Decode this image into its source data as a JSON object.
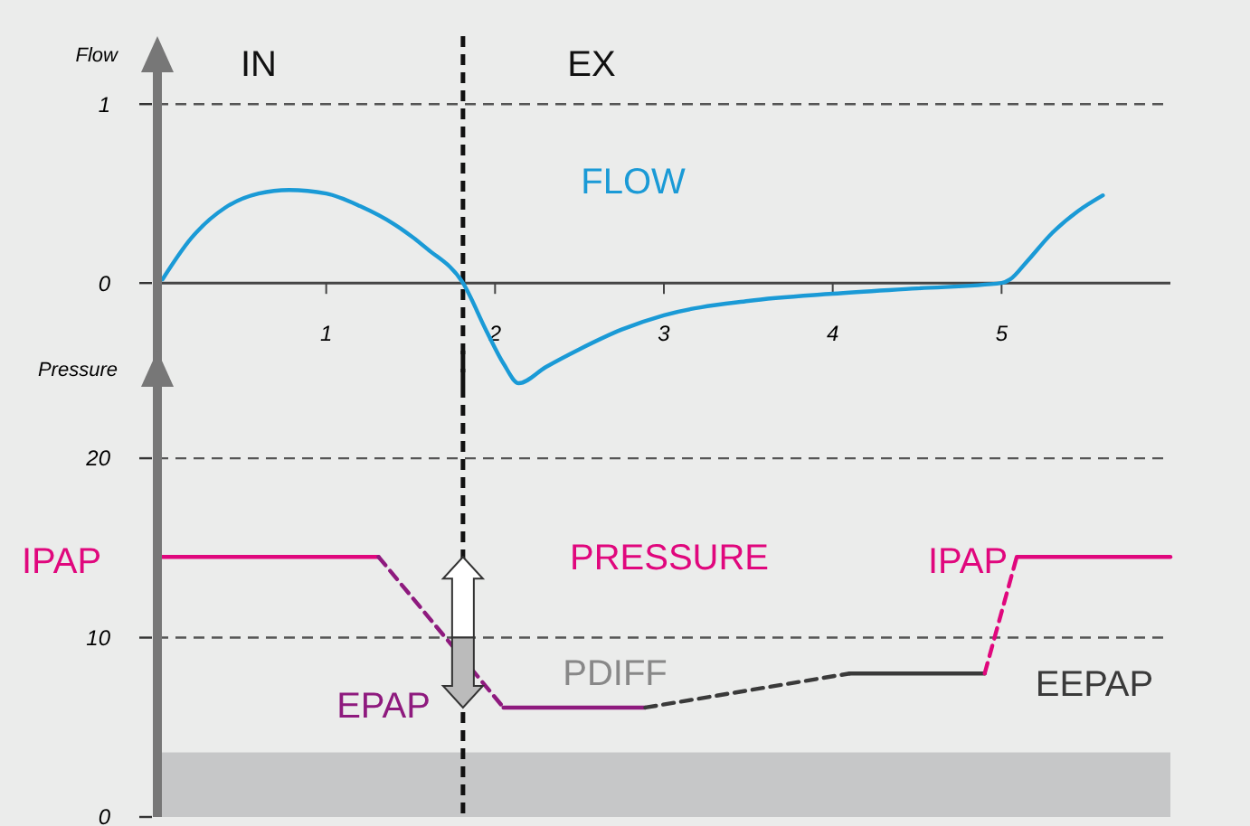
{
  "chart_data": [
    {
      "type": "line",
      "ylabel": "Flow",
      "xlim": [
        0,
        6.0
      ],
      "ylim": [
        -0.58,
        1.38
      ],
      "xticks": [
        1,
        2,
        3,
        4,
        5
      ],
      "yticks": [
        0,
        1
      ],
      "grid": "y",
      "series": [
        {
          "color": "#1a9ad6",
          "x": [
            0.03,
            0.2,
            0.4,
            0.6,
            0.78,
            1.0,
            1.2,
            1.4,
            1.6,
            1.81,
            1.95,
            2.05,
            2.14,
            2.3,
            2.5,
            2.75,
            3.0,
            3.5,
            4.0,
            4.5,
            5.0,
            5.05,
            5.15,
            5.3,
            5.45,
            5.6
          ],
          "values": [
            0.02,
            0.25,
            0.42,
            0.5,
            0.52,
            0.5,
            0.43,
            0.33,
            0.19,
            0,
            -0.27,
            -0.45,
            -0.56,
            -0.47,
            -0.37,
            -0.26,
            -0.18,
            -0.1,
            -0.06,
            -0.03,
            0,
            0.02,
            0.12,
            0.28,
            0.4,
            0.49
          ]
        }
      ],
      "ref_lines": [
        {
          "axis": "x",
          "value": 1.81,
          "color": "#111111",
          "line_style": "dashed"
        }
      ],
      "annotations": [
        "IN",
        "EX",
        "FLOW"
      ]
    },
    {
      "type": "line",
      "ylabel": "Pressure",
      "xlim": [
        0,
        6.0
      ],
      "ylim": [
        0,
        26
      ],
      "yticks": [
        0,
        10,
        20
      ],
      "grid": "y",
      "tick_labels": "y",
      "series": [
        {
          "color": "#e0077d",
          "line_style": "solid",
          "x": [
            0,
            1.31
          ],
          "values": [
            14.5,
            14.5
          ]
        },
        {
          "color": "#8e1a7e",
          "line_style": "dashed",
          "x": [
            1.31,
            2.05
          ],
          "values": [
            14.5,
            6.1
          ]
        },
        {
          "color": "#8e1a7e",
          "line_style": "solid",
          "x": [
            2.05,
            2.89
          ],
          "values": [
            6.1,
            6.1
          ]
        },
        {
          "color": "#3a3a3a",
          "line_style": "dashed",
          "x": [
            2.89,
            4.1
          ],
          "values": [
            6.1,
            8
          ]
        },
        {
          "color": "#3a3a3a",
          "line_style": "solid",
          "x": [
            4.1,
            4.9
          ],
          "values": [
            8,
            8
          ]
        },
        {
          "color": "#e0077d",
          "line_style": "dashed",
          "x": [
            4.9,
            5.09
          ],
          "values": [
            8,
            14.5
          ]
        },
        {
          "color": "#e0077d",
          "line_style": "solid",
          "x": [
            5.09,
            6.0
          ],
          "values": [
            14.5,
            14.5
          ]
        }
      ],
      "ref_lines": [
        {
          "axis": "x",
          "value": 1.81,
          "color": "#111111",
          "line_style": "dashed"
        }
      ],
      "bands": [
        {
          "axis": "y",
          "from": 0,
          "to": 3.6,
          "color": "#c6c7c8"
        }
      ],
      "annotations": [
        "IPAP",
        "PRESSURE",
        "IPAP",
        "EPAP",
        "PDIFF",
        "EEPAP"
      ]
    }
  ]
}
